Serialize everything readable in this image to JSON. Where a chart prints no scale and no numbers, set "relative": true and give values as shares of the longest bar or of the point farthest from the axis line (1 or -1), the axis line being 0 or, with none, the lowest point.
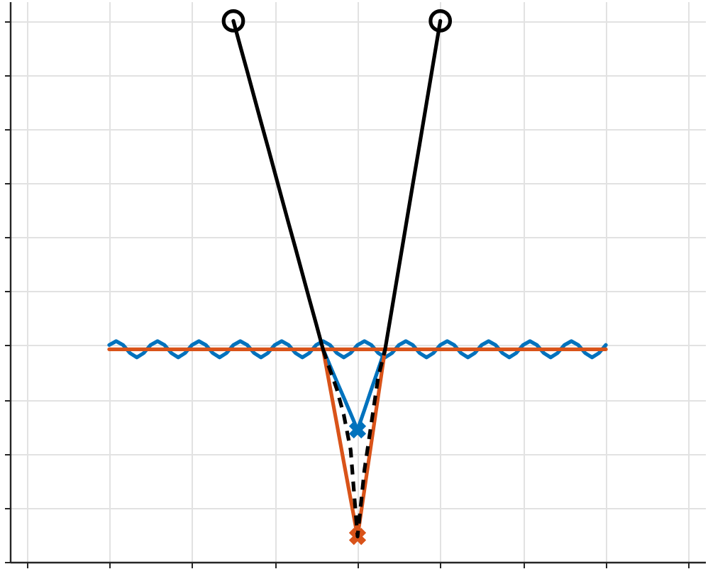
{
  "chart_data": {
    "type": "line",
    "relative": true,
    "grid": true,
    "categories": [
      null,
      null,
      null,
      null,
      null,
      null,
      null,
      null,
      null,
      null,
      null,
      null,
      null,
      null,
      null,
      null,
      null,
      null,
      null,
      null,
      null,
      null,
      null,
      null,
      null,
      null,
      null,
      null,
      null,
      null,
      null,
      null,
      null,
      null,
      null,
      null,
      null,
      null,
      null,
      null,
      null,
      null,
      null,
      null,
      null,
      null,
      null,
      null,
      null,
      null,
      null,
      null,
      null,
      null,
      null,
      null,
      null,
      null,
      null,
      null,
      null,
      null,
      null,
      null,
      null,
      null,
      null,
      null,
      null,
      null,
      null,
      null,
      null
    ],
    "series": [
      {
        "color": "#0072bd",
        "values": [
          0.401,
          0.408,
          0.401,
          0.386,
          0.378,
          0.386,
          0.401,
          0.408,
          0.401,
          0.386,
          0.378,
          0.386,
          0.401,
          0.408,
          0.401,
          0.386,
          0.378,
          0.386,
          0.401,
          0.408,
          0.401,
          0.386,
          0.378,
          0.386,
          0.401,
          0.408,
          0.401,
          0.386,
          0.378,
          0.386,
          0.401,
          0.408,
          0.401,
          0.386,
          0.378,
          0.386,
          0.401,
          0.408,
          0.401,
          0.386,
          0.378,
          0.386,
          0.401,
          0.408,
          0.401,
          0.386,
          0.378,
          0.386,
          0.401,
          0.408,
          0.401,
          0.386,
          0.378,
          0.386,
          0.401,
          0.408,
          0.401,
          0.386,
          0.378,
          0.386,
          0.401,
          0.408,
          0.401,
          0.386,
          0.378,
          0.386,
          0.401,
          0.408,
          0.401,
          0.386,
          0.378,
          0.386,
          0.401
        ]
      },
      {
        "color": "#0072bd",
        "values": [
          null,
          null,
          null,
          null,
          null,
          null,
          null,
          null,
          null,
          null,
          null,
          null,
          null,
          null,
          null,
          null,
          null,
          null,
          null,
          null,
          null,
          null,
          null,
          null,
          null,
          null,
          null,
          null,
          null,
          null,
          null,
          0.393,
          0.363,
          0.333,
          0.304,
          0.274,
          0.244,
          0.281,
          0.319,
          0.356,
          0.393,
          null,
          null,
          null,
          null,
          null,
          null,
          null,
          null,
          null,
          null,
          null,
          null,
          null,
          null,
          null,
          null,
          null,
          null,
          null,
          null,
          null,
          null,
          null,
          null,
          null,
          null,
          null,
          null,
          null,
          null,
          null,
          null
        ]
      },
      {
        "marker": "cross",
        "color": "#0072bd",
        "values": [
          null,
          null,
          null,
          null,
          null,
          null,
          null,
          null,
          null,
          null,
          null,
          null,
          null,
          null,
          null,
          null,
          null,
          null,
          null,
          null,
          null,
          null,
          null,
          null,
          null,
          null,
          null,
          null,
          null,
          null,
          null,
          null,
          null,
          null,
          null,
          null,
          0.244,
          null,
          null,
          null,
          null,
          null,
          null,
          null,
          null,
          null,
          null,
          null,
          null,
          null,
          null,
          null,
          null,
          null,
          null,
          null,
          null,
          null,
          null,
          null,
          null,
          null,
          null,
          null,
          null,
          null,
          null,
          null,
          null,
          null,
          null,
          null,
          null
        ]
      },
      {
        "color": "#d95319",
        "values": [
          0.393,
          0.393,
          0.393,
          0.393,
          0.393,
          0.393,
          0.393,
          0.393,
          0.393,
          0.393,
          0.393,
          0.393,
          0.393,
          0.393,
          0.393,
          0.393,
          0.393,
          0.393,
          0.393,
          0.393,
          0.393,
          0.393,
          0.393,
          0.393,
          0.393,
          0.393,
          0.393,
          0.393,
          0.393,
          0.393,
          0.393,
          0.393,
          0.393,
          0.393,
          0.393,
          0.393,
          0.393,
          0.393,
          0.393,
          0.393,
          0.393,
          0.393,
          0.393,
          0.393,
          0.393,
          0.393,
          0.393,
          0.393,
          0.393,
          0.393,
          0.393,
          0.393,
          0.393,
          0.393,
          0.393,
          0.393,
          0.393,
          0.393,
          0.393,
          0.393,
          0.393,
          0.393,
          0.393,
          0.393,
          0.393,
          0.393,
          0.393,
          0.393,
          0.393,
          0.393,
          0.393,
          0.393,
          0.393
        ]
      },
      {
        "color": "#d95319",
        "values": [
          null,
          null,
          null,
          null,
          null,
          null,
          null,
          null,
          null,
          null,
          null,
          null,
          null,
          null,
          null,
          null,
          null,
          null,
          null,
          null,
          null,
          null,
          null,
          null,
          null,
          null,
          null,
          null,
          null,
          null,
          null,
          0.393,
          0.324,
          0.255,
          0.185,
          0.116,
          0.047,
          0.134,
          0.22,
          0.307,
          0.393,
          null,
          null,
          null,
          null,
          null,
          null,
          null,
          null,
          null,
          null,
          null,
          null,
          null,
          null,
          null,
          null,
          null,
          null,
          null,
          null,
          null,
          null,
          null,
          null,
          null,
          null,
          null,
          null,
          null,
          null,
          null,
          null
        ]
      },
      {
        "marker": "cross",
        "color": "#d95319",
        "values": [
          null,
          null,
          null,
          null,
          null,
          null,
          null,
          null,
          null,
          null,
          null,
          null,
          null,
          null,
          null,
          null,
          null,
          null,
          null,
          null,
          null,
          null,
          null,
          null,
          null,
          null,
          null,
          null,
          null,
          null,
          null,
          null,
          null,
          null,
          null,
          null,
          0.047,
          null,
          null,
          null,
          null,
          null,
          null,
          null,
          null,
          null,
          null,
          null,
          null,
          null,
          null,
          null,
          null,
          null,
          null,
          null,
          null,
          null,
          null,
          null,
          null,
          null,
          null,
          null,
          null,
          null,
          null,
          null,
          null,
          null,
          null,
          null,
          null
        ]
      },
      {
        "color": "#000000",
        "values": [
          null,
          null,
          null,
          null,
          null,
          null,
          null,
          null,
          null,
          null,
          null,
          null,
          null,
          null,
          null,
          null,
          null,
          null,
          1.0,
          0.953,
          0.907,
          0.86,
          0.813,
          0.767,
          0.72,
          0.673,
          0.626,
          0.58,
          0.533,
          0.486,
          0.44,
          0.393,
          null,
          null,
          null,
          null,
          null,
          null,
          null,
          null,
          null,
          null,
          null,
          null,
          null,
          null,
          null,
          null,
          null,
          null,
          null,
          null,
          null,
          null,
          null,
          null,
          null,
          null,
          null,
          null,
          null,
          null,
          null,
          null,
          null,
          null,
          null,
          null,
          null,
          null,
          null,
          null,
          null
        ]
      },
      {
        "color": "#000000",
        "line_style": "dashed",
        "values": [
          null,
          null,
          null,
          null,
          null,
          null,
          null,
          null,
          null,
          null,
          null,
          null,
          null,
          null,
          null,
          null,
          null,
          null,
          null,
          null,
          null,
          null,
          null,
          null,
          null,
          null,
          null,
          null,
          null,
          null,
          null,
          0.393,
          0.355,
          0.319,
          0.272,
          0.207,
          0.047,
          0.17,
          0.256,
          0.342,
          0.393,
          null,
          null,
          null,
          null,
          null,
          null,
          null,
          null,
          null,
          null,
          null,
          null,
          null,
          null,
          null,
          null,
          null,
          null,
          null,
          null,
          null,
          null,
          null,
          null,
          null,
          null,
          null,
          null,
          null,
          null,
          null,
          null
        ]
      },
      {
        "color": "#000000",
        "values": [
          null,
          null,
          null,
          null,
          null,
          null,
          null,
          null,
          null,
          null,
          null,
          null,
          null,
          null,
          null,
          null,
          null,
          null,
          null,
          null,
          null,
          null,
          null,
          null,
          null,
          null,
          null,
          null,
          null,
          null,
          null,
          null,
          null,
          null,
          null,
          null,
          null,
          null,
          null,
          null,
          0.393,
          0.469,
          0.545,
          0.621,
          0.697,
          0.772,
          0.848,
          0.924,
          1.0,
          null,
          null,
          null,
          null,
          null,
          null,
          null,
          null,
          null,
          null,
          null,
          null,
          null,
          null,
          null,
          null,
          null,
          null,
          null,
          null,
          null,
          null,
          null,
          null
        ]
      },
      {
        "marker": "circle",
        "color": "#000000",
        "values": [
          null,
          null,
          null,
          null,
          null,
          null,
          null,
          null,
          null,
          null,
          null,
          null,
          null,
          null,
          null,
          null,
          null,
          null,
          1.0,
          null,
          null,
          null,
          null,
          null,
          null,
          null,
          null,
          null,
          null,
          null,
          null,
          null,
          null,
          null,
          null,
          null,
          null,
          null,
          null,
          null,
          null,
          null,
          null,
          null,
          null,
          null,
          null,
          null,
          null,
          null,
          null,
          null,
          null,
          null,
          null,
          null,
          null,
          null,
          null,
          null,
          null,
          null,
          null,
          null,
          null,
          null,
          null,
          null,
          null,
          null,
          null,
          null,
          null
        ]
      },
      {
        "marker": "circle",
        "color": "#000000",
        "values": [
          null,
          null,
          null,
          null,
          null,
          null,
          null,
          null,
          null,
          null,
          null,
          null,
          null,
          null,
          null,
          null,
          null,
          null,
          null,
          null,
          null,
          null,
          null,
          null,
          null,
          null,
          null,
          null,
          null,
          null,
          null,
          null,
          null,
          null,
          null,
          null,
          null,
          null,
          null,
          null,
          null,
          null,
          null,
          null,
          null,
          null,
          null,
          null,
          1.0,
          null,
          null,
          null,
          null,
          null,
          null,
          null,
          null,
          null,
          null,
          null,
          null,
          null,
          null,
          null,
          null,
          null,
          null,
          null,
          null,
          null,
          null,
          null,
          null
        ]
      }
    ]
  }
}
